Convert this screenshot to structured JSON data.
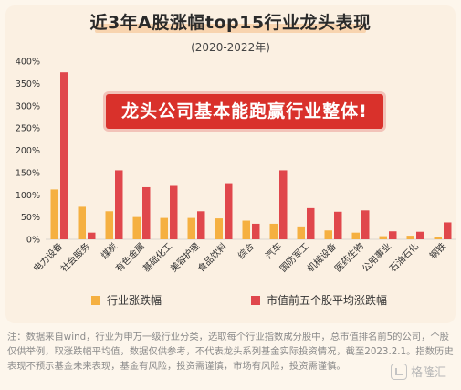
{
  "chart_data": {
    "type": "bar",
    "title": "近3年A股涨幅top15行业龙头表现",
    "subtitle": "(2020-2022年)",
    "annotation": "龙头公司基本能跑赢行业整体!",
    "categories": [
      "电力设备",
      "社会服务",
      "煤炭",
      "有色金属",
      "基础化工",
      "美容护理",
      "食品饮料",
      "综合",
      "汽车",
      "国防军工",
      "机械设备",
      "医药生物",
      "公用事业",
      "石油石化",
      "钢铁"
    ],
    "series": [
      {
        "name": "行业涨跌幅",
        "color": "#f5b041",
        "values": [
          112,
          73,
          63,
          50,
          48,
          48,
          47,
          42,
          35,
          29,
          20,
          15,
          7,
          8,
          5
        ]
      },
      {
        "name": "市值前五个股平均涨跌幅",
        "color": "#e0474c",
        "values": [
          375,
          15,
          155,
          117,
          120,
          63,
          126,
          35,
          155,
          70,
          62,
          65,
          18,
          17,
          38
        ]
      }
    ],
    "yticks": [
      "0%",
      "50%",
      "100%",
      "150%",
      "200%",
      "250%",
      "300%",
      "350%",
      "400%"
    ],
    "ylim": [
      0,
      400
    ],
    "grid": false,
    "legend": "bottom"
  },
  "note": "注：数据来自wind，行业为申万一级行业分类，选取每个行业指数成分股中，总市值排名前5的公司，个股仅供举例，取涨跌幅平均值，数据仅供参考，不代表龙头系列基金实际投资情况，截至2023.2.1。指数历史表现不预示基金未来表现，基金有风险，投资需谨慎，市场有风险，投资需谨慎。",
  "watermark": "格隆汇",
  "colors": {
    "background": "#fbf0e2",
    "banner": "#d9312b"
  }
}
